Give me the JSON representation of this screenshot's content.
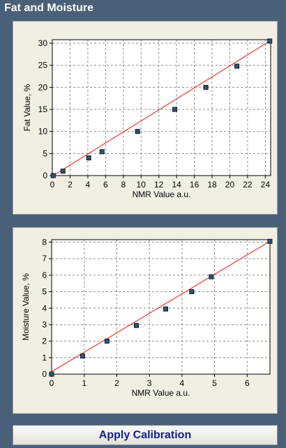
{
  "header": {
    "title": "Fat and Moisture"
  },
  "apply_button": {
    "label": "Apply Calibration"
  },
  "colors": {
    "line": "#e8372c",
    "point": "#33526e",
    "grid": "#8a8a8a"
  },
  "chart_data": [
    {
      "type": "scatter",
      "xlabel": "NMR Value a.u.",
      "ylabel": "Fat Value, %",
      "xlim": [
        0,
        24.6
      ],
      "ylim": [
        0,
        30.8
      ],
      "x_ticks": [
        0,
        2,
        4,
        6,
        8,
        10,
        12,
        14,
        16,
        18,
        20,
        22,
        24
      ],
      "y_ticks": [
        0,
        5,
        10,
        15,
        20,
        25,
        30
      ],
      "grid": true,
      "points": [
        {
          "x": 0.1,
          "y": 0.0
        },
        {
          "x": 1.2,
          "y": 1.0
        },
        {
          "x": 4.1,
          "y": 4.0
        },
        {
          "x": 5.6,
          "y": 5.4
        },
        {
          "x": 9.6,
          "y": 10.0
        },
        {
          "x": 13.8,
          "y": 15.0
        },
        {
          "x": 17.3,
          "y": 20.0
        },
        {
          "x": 20.8,
          "y": 24.8
        },
        {
          "x": 24.5,
          "y": 30.5
        }
      ],
      "fit_line": [
        {
          "x": 0.1,
          "y": 0.0
        },
        {
          "x": 24.5,
          "y": 30.5
        }
      ]
    },
    {
      "type": "scatter",
      "xlabel": "NMR Value a.u.",
      "ylabel": "Moisture Value, %",
      "xlim": [
        0,
        6.7
      ],
      "ylim": [
        0,
        8.15
      ],
      "x_ticks": [
        0,
        1,
        2,
        3,
        4,
        5,
        6
      ],
      "y_ticks": [
        0,
        1,
        2,
        3,
        4,
        5,
        6,
        7,
        8
      ],
      "grid": true,
      "points": [
        {
          "x": 0.0,
          "y": 0.0
        },
        {
          "x": 0.95,
          "y": 1.1
        },
        {
          "x": 1.7,
          "y": 2.0
        },
        {
          "x": 2.6,
          "y": 2.95
        },
        {
          "x": 3.5,
          "y": 3.95
        },
        {
          "x": 4.3,
          "y": 5.0
        },
        {
          "x": 4.9,
          "y": 5.9
        },
        {
          "x": 6.7,
          "y": 8.05
        }
      ],
      "fit_line": [
        {
          "x": 0.0,
          "y": 0.15
        },
        {
          "x": 6.7,
          "y": 8.05
        }
      ]
    }
  ]
}
